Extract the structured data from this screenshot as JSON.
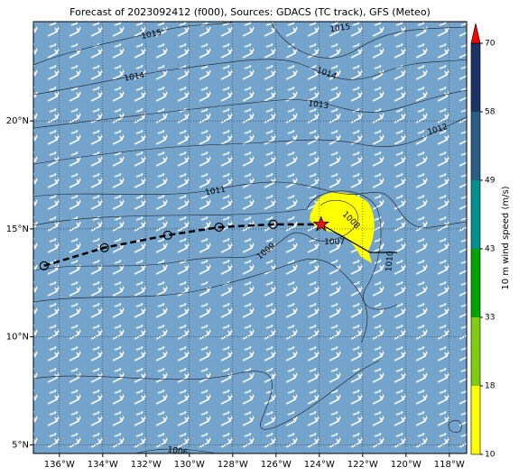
{
  "chart_data": {
    "type": "map",
    "title": "Forecast of 2023092412 (f000), Sources: GDACS (TC track), GFS (Meteo)",
    "xlim": [
      -137.2,
      -117.2
    ],
    "ylim": [
      4.6,
      24.6
    ],
    "xticks": [
      {
        "value": -136,
        "label": "136°W"
      },
      {
        "value": -134,
        "label": "134°W"
      },
      {
        "value": -132,
        "label": "132°W"
      },
      {
        "value": -130,
        "label": "130°W"
      },
      {
        "value": -128,
        "label": "128°W"
      },
      {
        "value": -126,
        "label": "126°W"
      },
      {
        "value": -124,
        "label": "124°W"
      },
      {
        "value": -122,
        "label": "122°W"
      },
      {
        "value": -120,
        "label": "120°W"
      },
      {
        "value": -118,
        "label": "118°W"
      }
    ],
    "yticks": [
      {
        "value": 5,
        "label": "5°N"
      },
      {
        "value": 10,
        "label": "10°N"
      },
      {
        "value": 15,
        "label": "15°N"
      },
      {
        "value": 20,
        "label": "20°N"
      }
    ],
    "grid": true,
    "background_color": "#74a4cb",
    "track": {
      "lon": [
        -136.71,
        -133.92,
        -131.0,
        -128.63,
        -126.13,
        -123.92
      ],
      "lat": [
        13.29,
        14.13,
        14.71,
        15.08,
        15.21,
        15.21
      ],
      "color": "#000000",
      "current_color": "#e8141b"
    },
    "contour_labels": [
      {
        "level": 1015,
        "lon": -131.75,
        "lat": 24.0
      },
      {
        "level": 1015,
        "lon": -123.04,
        "lat": 24.3
      },
      {
        "level": 1014,
        "lon": -132.54,
        "lat": 22.04
      },
      {
        "level": 1014,
        "lon": -123.67,
        "lat": 22.2
      },
      {
        "level": 1013,
        "lon": -124.04,
        "lat": 20.75
      },
      {
        "level": 1012,
        "lon": -118.54,
        "lat": 19.6
      },
      {
        "level": 1011,
        "lon": -128.8,
        "lat": 16.75
      },
      {
        "level": 1009,
        "lon": -126.46,
        "lat": 13.96
      },
      {
        "level": 1008,
        "lon": -122.54,
        "lat": 15.4
      },
      {
        "level": 1007,
        "lon": -123.3,
        "lat": 14.4
      },
      {
        "level": 1010,
        "lon": -120.75,
        "lat": 13.5
      },
      {
        "level": 1006,
        "lon": -130.54,
        "lat": 4.7
      }
    ],
    "colorbar": {
      "label": "10 m wind speed (m/s)",
      "bounds": [
        10,
        18,
        33,
        43,
        49,
        58,
        70
      ],
      "colors": [
        "#ffff00",
        "#80cc10",
        "#00a400",
        "#00908e",
        "#2a5e86",
        "#1c3366"
      ],
      "extend_color": "#ff0000"
    }
  }
}
